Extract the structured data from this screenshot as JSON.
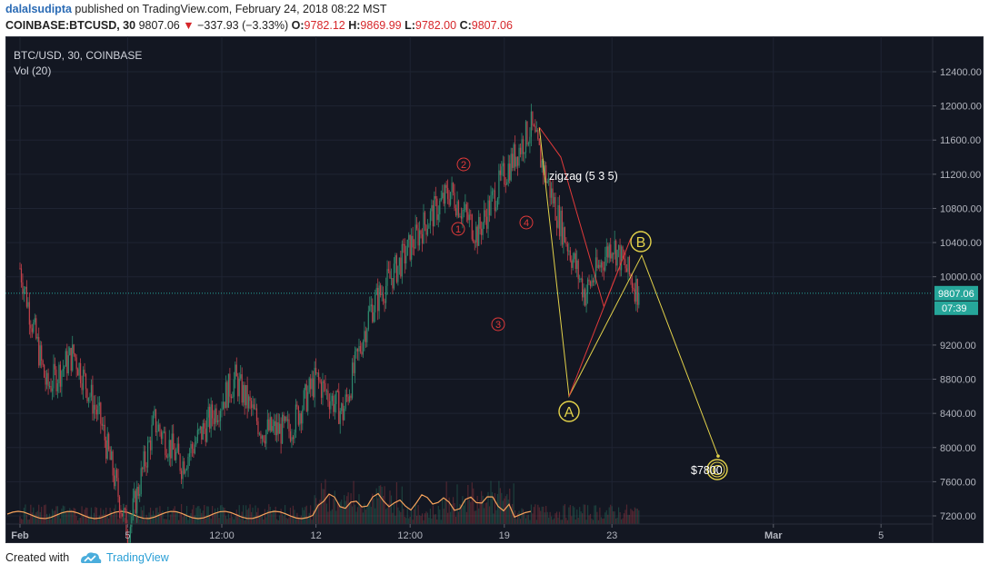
{
  "header": {
    "author": "dalalsudipta",
    "published_text": "published on TradingView.com, February 24, 2018 08:22 MST",
    "symbol": "COINBASE:BTCUSD, 30",
    "last": "9807.06",
    "arrow": "▼",
    "change": "−337.93 (−3.33%)",
    "o_label": "O:",
    "o_val": "9782.12",
    "h_label": "H:",
    "h_val": "9869.99",
    "l_label": "L:",
    "l_val": "9782.00",
    "c_label": "C:",
    "c_val": "9807.06"
  },
  "legend": {
    "series_title": "BTC/USD, 30, COINBASE",
    "volume_title": "Vol (20)"
  },
  "price_axis": {
    "ticks": [
      "12400.00",
      "12000.00",
      "11600.00",
      "11200.00",
      "10800.00",
      "10400.00",
      "10000.00",
      "9200.00",
      "8800.00",
      "8400.00",
      "8000.00",
      "7600.00",
      "7200.00"
    ],
    "last_price_label": "9807.06",
    "countdown_label": "07:39"
  },
  "time_axis": {
    "labels": [
      "Feb",
      "5",
      "12:00",
      "12",
      "12:00",
      "19",
      "23",
      "Mar",
      "5"
    ]
  },
  "annotations": {
    "zigzag_label": "zigzag (5 3 5)",
    "target_label": "$7800",
    "wave_A": "A",
    "wave_B": "B",
    "wave_C": "C",
    "sub_waves": [
      "1",
      "2",
      "3",
      "4"
    ]
  },
  "colors": {
    "background": "#131722",
    "bull": "#2e8b6f",
    "bear": "#c2414a",
    "wave_line": "#e3d24a",
    "impulse_line": "#e03a3a",
    "last_price": "#26a69a"
  },
  "chart_data": {
    "type": "candlestick",
    "title": "BTC/USD, 30, COINBASE",
    "xlabel": "",
    "ylabel": "",
    "ylim": [
      7100,
      12600
    ],
    "price_path": [
      {
        "x": "Feb 1",
        "y": 10100
      },
      {
        "x": "Feb 2",
        "y": 8700
      },
      {
        "x": "Feb 3",
        "y": 9100
      },
      {
        "x": "Feb 4",
        "y": 8300
      },
      {
        "x": "Feb 5",
        "y": 7000
      },
      {
        "x": "Feb 6",
        "y": 8300
      },
      {
        "x": "Feb 7",
        "y": 7800
      },
      {
        "x": "Feb 8",
        "y": 8300
      },
      {
        "x": "Feb 9",
        "y": 8800
      },
      {
        "x": "Feb 10",
        "y": 8200
      },
      {
        "x": "Feb 11",
        "y": 8200
      },
      {
        "x": "Feb 12",
        "y": 8800
      },
      {
        "x": "Feb 13",
        "y": 8400
      },
      {
        "x": "Feb 14",
        "y": 9600
      },
      {
        "x": "Feb 15",
        "y": 10100
      },
      {
        "x": "Feb 16",
        "y": 10600
      },
      {
        "x": "Feb 17",
        "y": 11000
      },
      {
        "x": "Feb 18",
        "y": 10500
      },
      {
        "x": "Feb 19",
        "y": 11200
      },
      {
        "x": "Feb 20",
        "y": 11750
      },
      {
        "x": "Feb 21",
        "y": 10700
      },
      {
        "x": "Feb 22",
        "y": 9800
      },
      {
        "x": "Feb 23",
        "y": 10400
      },
      {
        "x": "Feb 24",
        "y": 9807
      }
    ],
    "projection": [
      {
        "label": "A",
        "x": "Feb 26",
        "y": 8600
      },
      {
        "label": "B",
        "x": "Mar 1",
        "y": 10250
      },
      {
        "label": "C",
        "x": "Mar 5",
        "y": 7800
      }
    ],
    "last_price": 9807.06,
    "grid": true,
    "legend": "top-left"
  }
}
